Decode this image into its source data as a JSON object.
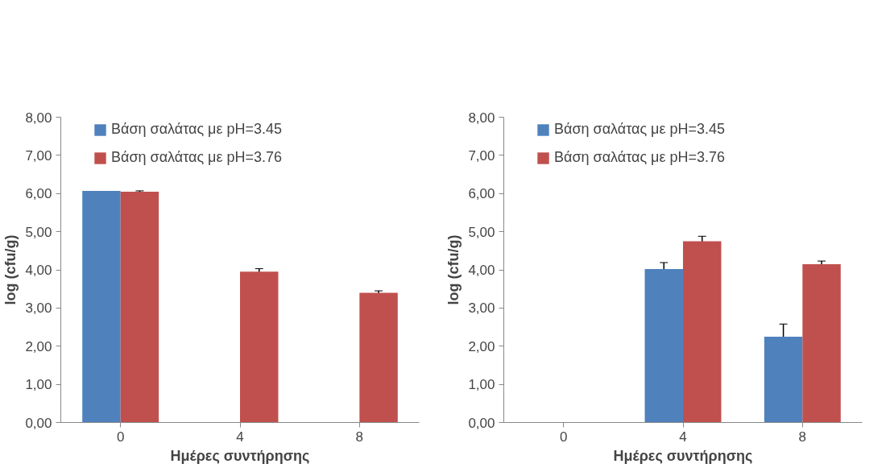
{
  "chart_data": [
    {
      "type": "bar",
      "xlabel": "Ημέρες συντήρησης",
      "ylabel": "log (cfu/g)",
      "categories": [
        "0",
        "4",
        "8"
      ],
      "series": [
        {
          "name": "Βάση σαλάτας με pH=3.45",
          "color": "#4f81bd",
          "values": [
            6.07,
            0,
            0
          ],
          "errors": [
            null,
            null,
            null
          ]
        },
        {
          "name": "Βάση σαλάτας με pH=3.76",
          "color": "#c0504d",
          "values": [
            6.05,
            3.95,
            3.4
          ],
          "errors": [
            0.02,
            0.08,
            0.05
          ]
        }
      ],
      "ylim": [
        0,
        8
      ],
      "yticks": [
        {
          "value": 0,
          "label": "0,00"
        },
        {
          "value": 1,
          "label": "1,00"
        },
        {
          "value": 2,
          "label": "2,00"
        },
        {
          "value": 3,
          "label": "3,00"
        },
        {
          "value": 4,
          "label": "4,00"
        },
        {
          "value": 5,
          "label": "5,00"
        },
        {
          "value": 6,
          "label": "6,00"
        },
        {
          "value": 7,
          "label": "7,00"
        },
        {
          "value": 8,
          "label": "8,00"
        }
      ],
      "grid": false,
      "legend": "top"
    },
    {
      "type": "bar",
      "xlabel": "Ημέρες συντήρησης",
      "ylabel": "log (cfu/g)",
      "categories": [
        "0",
        "4",
        "8"
      ],
      "series": [
        {
          "name": "Βάση σαλάτας με pH=3.45",
          "color": "#4f81bd",
          "values": [
            0,
            4.02,
            2.25
          ],
          "errors": [
            null,
            0.17,
            0.33
          ]
        },
        {
          "name": "Βάση σαλάτας με pH=3.76",
          "color": "#c0504d",
          "values": [
            0,
            4.75,
            4.15
          ],
          "errors": [
            null,
            0.13,
            0.08
          ]
        }
      ],
      "ylim": [
        0,
        8
      ],
      "yticks": [
        {
          "value": 0,
          "label": "0,00"
        },
        {
          "value": 1,
          "label": "1,00"
        },
        {
          "value": 2,
          "label": "2,00"
        },
        {
          "value": 3,
          "label": "3,00"
        },
        {
          "value": 4,
          "label": "4,00"
        },
        {
          "value": 5,
          "label": "5,00"
        },
        {
          "value": 6,
          "label": "6,00"
        },
        {
          "value": 7,
          "label": "7,00"
        },
        {
          "value": 8,
          "label": "8,00"
        }
      ],
      "grid": false,
      "legend": "top"
    }
  ]
}
